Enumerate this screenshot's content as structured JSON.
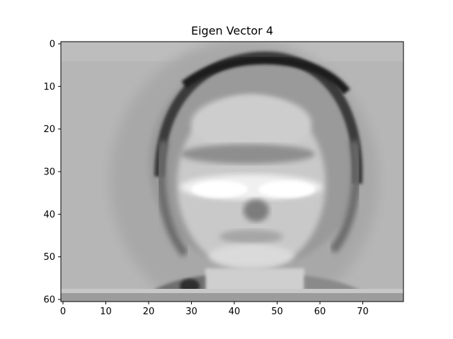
{
  "figure": {
    "title": "Eigen Vector 4",
    "colormap": "gray",
    "image_description": "grayscale eigenface: blurred face with dark hairline arc across the top, bright cheek band around rows 33-36, darker background strip near the bottom",
    "x_axis": {
      "ticks": [
        0,
        10,
        20,
        30,
        40,
        50,
        60,
        70
      ],
      "tick_labels": [
        "0",
        "10",
        "20",
        "30",
        "40",
        "50",
        "60",
        "70"
      ],
      "range": [
        -0.5,
        79.5
      ]
    },
    "y_axis": {
      "ticks": [
        0,
        10,
        20,
        30,
        40,
        50,
        60
      ],
      "tick_labels": [
        "0",
        "10",
        "20",
        "30",
        "40",
        "50",
        "60"
      ],
      "range": [
        60.5,
        -0.5
      ],
      "inverted": true
    }
  }
}
